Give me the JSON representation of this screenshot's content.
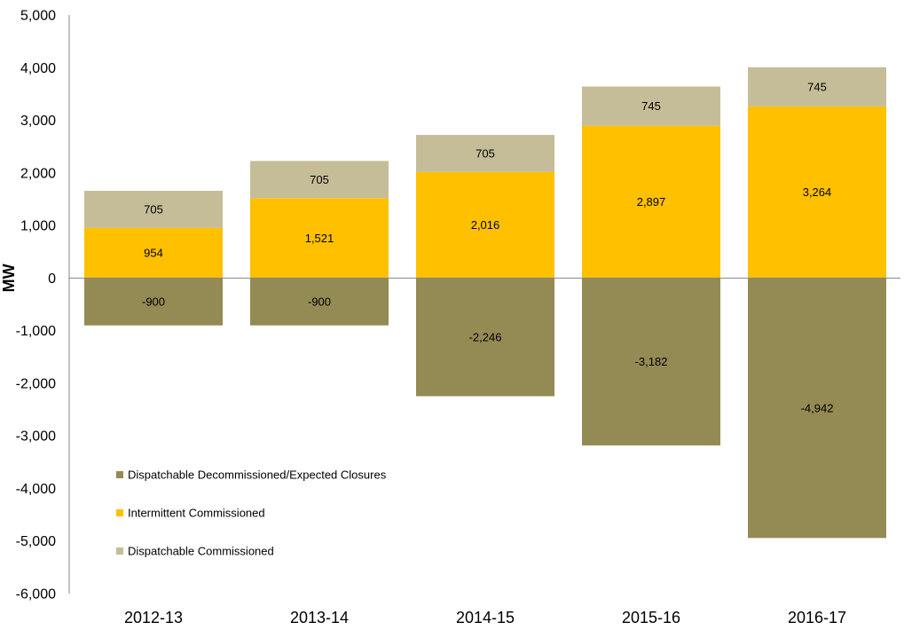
{
  "chart_data": {
    "type": "bar",
    "stacked": true,
    "title": "",
    "xlabel": "",
    "ylabel": "MW",
    "categories": [
      "2012-13",
      "2013-14",
      "2014-15",
      "2015-16",
      "2016-17"
    ],
    "ylim": [
      -6000,
      5000
    ],
    "yticks": [
      5000,
      4000,
      3000,
      2000,
      1000,
      0,
      -1000,
      -2000,
      -3000,
      -4000,
      -5000,
      -6000
    ],
    "ytick_labels": [
      "5,000",
      "4,000",
      "3,000",
      "2,000",
      "1,000",
      "0",
      "-1,000",
      "-2,000",
      "-3,000",
      "-4,000",
      "-5,000",
      "-6,000"
    ],
    "grid": false,
    "legend_position": "bottom-left (inside)",
    "series": [
      {
        "name": "Dispatchable Decommissioned/Expected Closures",
        "color": "#948A54",
        "values": [
          -900,
          -900,
          -2246,
          -3182,
          -4942
        ],
        "labels": [
          "-900",
          "-900",
          "-2,246",
          "-3,182",
          "-4,942"
        ]
      },
      {
        "name": "Intermittent Commissioned",
        "color": "#FFC000",
        "values": [
          954,
          1521,
          2016,
          2897,
          3264
        ],
        "labels": [
          "954",
          "1,521",
          "2,016",
          "2,897",
          "3,264"
        ]
      },
      {
        "name": "Dispatchable Commissioned",
        "color": "#C4BD97",
        "values": [
          705,
          705,
          705,
          745,
          745
        ],
        "labels": [
          "705",
          "705",
          "705",
          "745",
          "745"
        ]
      }
    ]
  }
}
